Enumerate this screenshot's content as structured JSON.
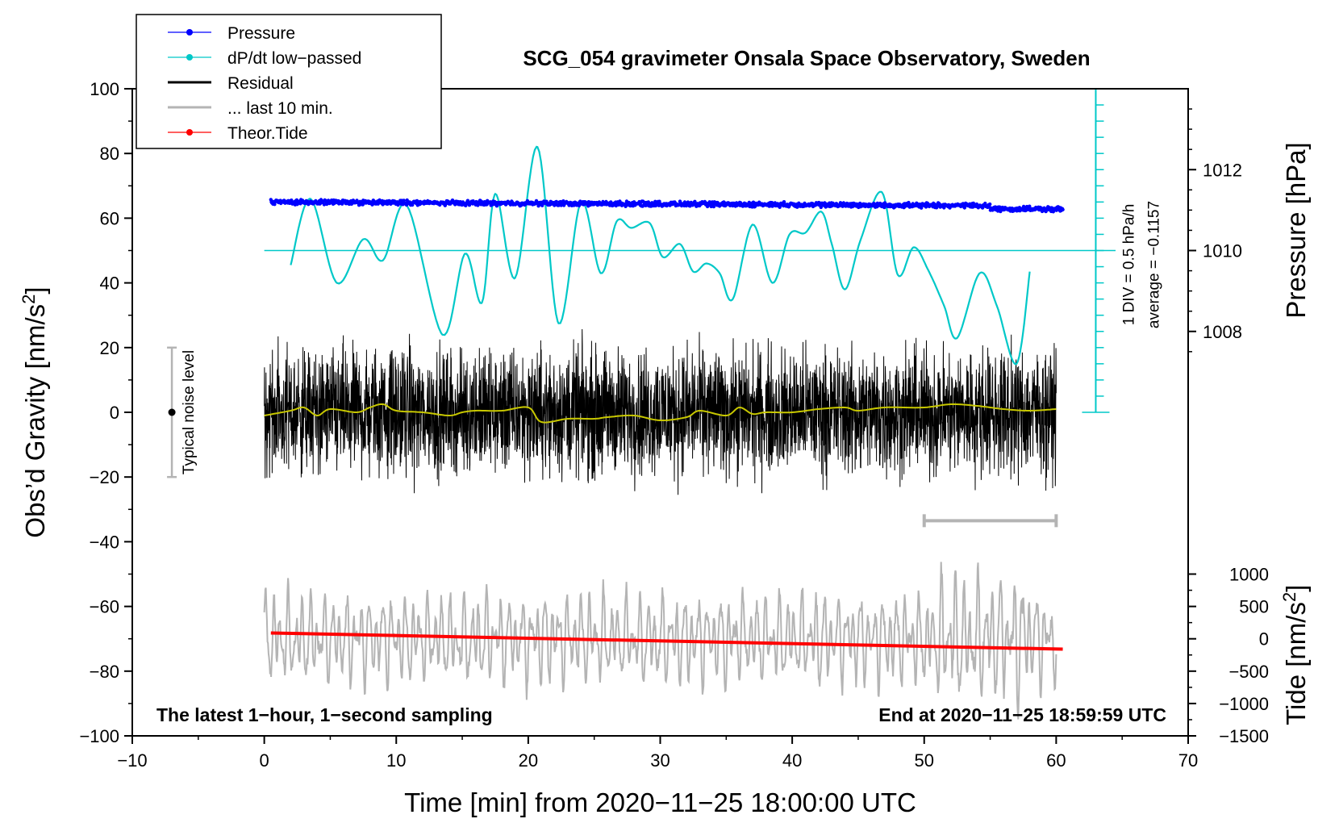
{
  "chart_data": {
    "type": "line",
    "title": "SCG_054 gravimeter Onsala Space Observatory, Sweden",
    "xlabel": "Time [min] from 2020−11−25 18:00:00 UTC",
    "ylabel_left_main": "Obs’d Gravity [nm/s",
    "ylabel_left_sup": "2",
    "ylabel_left_end": "]",
    "ylabel_right_top": "Pressure [hPa]",
    "ylabel_right_bottom_main": "Tide [nm/s",
    "ylabel_right_bottom_sup": "2",
    "ylabel_right_bottom_end": "]",
    "xlim": [
      -10,
      70
    ],
    "ylim": [
      -100,
      100
    ],
    "x_ticks": [
      -10,
      0,
      10,
      20,
      30,
      40,
      50,
      60,
      70
    ],
    "x_tick_labels": [
      "−10",
      "0",
      "10",
      "20",
      "30",
      "40",
      "50",
      "60",
      "70"
    ],
    "y_ticks": [
      100,
      80,
      60,
      40,
      20,
      0,
      -20,
      -40,
      -60,
      -80,
      -100
    ],
    "y_tick_labels": [
      "100",
      "80",
      "60",
      "40",
      "20",
      "0",
      "−20",
      "−40",
      "−60",
      "−80",
      "−100"
    ],
    "pressure_axis": {
      "ticks": [
        1012,
        1010,
        1008
      ],
      "tick_labels": [
        "1012",
        "1010",
        "1008"
      ],
      "gravity_per_hpa": 12.5,
      "ref_hpa": 1010,
      "ref_gravity": 50
    },
    "tide_axis": {
      "ticks": [
        1000,
        500,
        0,
        -500,
        -1000,
        -1500
      ],
      "tick_labels": [
        "1000",
        "500",
        "0",
        "−500",
        "−1000",
        "−1500"
      ],
      "gravity_per_unit": 0.02,
      "offset": -70
    },
    "dpdt_scale": {
      "x": 63,
      "y_bottom": 0,
      "y_top": 100,
      "minor_step": 5,
      "label_div": "1 DIV = 0.5 hPa/h",
      "label_avg": "average = −0.1157",
      "ref_line_y": 50
    },
    "noise_level": {
      "x": -7,
      "center": 0,
      "half_range": 20,
      "label": "Typical noise level"
    },
    "last10_bar": {
      "x_start": 50,
      "x_end": 60,
      "y": -33.5
    },
    "annotations": {
      "bottom_left": "The latest 1−hour, 1−second sampling",
      "bottom_right": "End at 2020−11−25 18:59:59 UTC"
    },
    "legend": [
      {
        "label": "Pressure",
        "color": "#0000ff",
        "marker": true
      },
      {
        "label": "dP/dt low−passed",
        "color": "#00c8c8",
        "marker": true
      },
      {
        "label": "Residual",
        "color": "#000000",
        "marker": false
      },
      {
        "label": "... last 10 min.",
        "color": "#b4b4b4",
        "marker": false
      },
      {
        "label": "Theor.Tide",
        "color": "#ff0000",
        "marker": true
      }
    ],
    "series": [
      {
        "name": "Pressure",
        "color": "#0000ff",
        "unit": "hPa",
        "x_range": [
          0.5,
          60.5
        ],
        "start": 1011.2,
        "end": 1011.1,
        "scatter": 0.07
      },
      {
        "name": "dP/dt low−passed",
        "color": "#00c8c8",
        "x": [
          2.0,
          3.5,
          5.5,
          7.5,
          9.0,
          10.8,
          13.5,
          15.2,
          16.5,
          17.5,
          19.0,
          20.7,
          22.3,
          24.0,
          25.5,
          26.7,
          27.8,
          29.2,
          30.2,
          31.5,
          32.5,
          33.5,
          34.5,
          35.5,
          37.0,
          38.5,
          39.8,
          41.0,
          42.2,
          43.0,
          44.0,
          45.2,
          46.8,
          48.0,
          49.2,
          50.3,
          51.5,
          52.5,
          54.2,
          55.5,
          57.0,
          58.0
        ],
        "y": [
          45.5,
          66,
          40,
          53.5,
          47,
          64,
          24,
          49,
          34,
          67.5,
          41.5,
          82,
          27.5,
          65,
          43,
          59,
          57,
          58.5,
          48,
          52,
          43.5,
          46,
          43,
          35,
          58,
          40,
          55,
          55.5,
          62,
          52,
          38,
          53.5,
          68,
          42.5,
          51,
          44,
          33,
          23,
          43,
          33,
          15,
          43.5
        ]
      },
      {
        "name": "Residual",
        "color": "#000000",
        "x_range": [
          0,
          60
        ],
        "amplitude": 18
      },
      {
        "name": "Residual (low−passed)",
        "color": "#c8c800",
        "x": [
          0,
          2,
          3,
          4,
          5,
          7,
          8,
          9,
          10,
          12,
          14,
          15,
          16,
          18,
          20,
          21,
          23,
          25,
          26,
          28,
          30,
          32,
          33,
          35,
          36,
          37,
          38,
          40,
          42,
          44,
          45,
          47,
          50,
          52,
          54,
          56,
          58,
          60
        ],
        "y": [
          -1,
          0.5,
          1.5,
          -1,
          1,
          0,
          1.5,
          2.5,
          0.5,
          0,
          -1,
          0,
          0.5,
          0.5,
          1.5,
          -3,
          -2,
          -2,
          -1.5,
          -1,
          -2.5,
          -1.5,
          0.5,
          -1,
          1.5,
          -0.5,
          0,
          0,
          1,
          1.5,
          0.5,
          1.5,
          1.5,
          2.5,
          2,
          1,
          0.5,
          1
        ]
      },
      {
        "name": "... last 10 min.",
        "color": "#b4b4b4",
        "x_range": [
          0,
          60
        ],
        "center": -70,
        "amplitude": 15
      },
      {
        "name": "Theor.Tide",
        "color": "#ff0000",
        "unit": "nm/s^2",
        "x": [
          0.5,
          60.5
        ],
        "y": [
          90,
          -160
        ]
      }
    ]
  }
}
